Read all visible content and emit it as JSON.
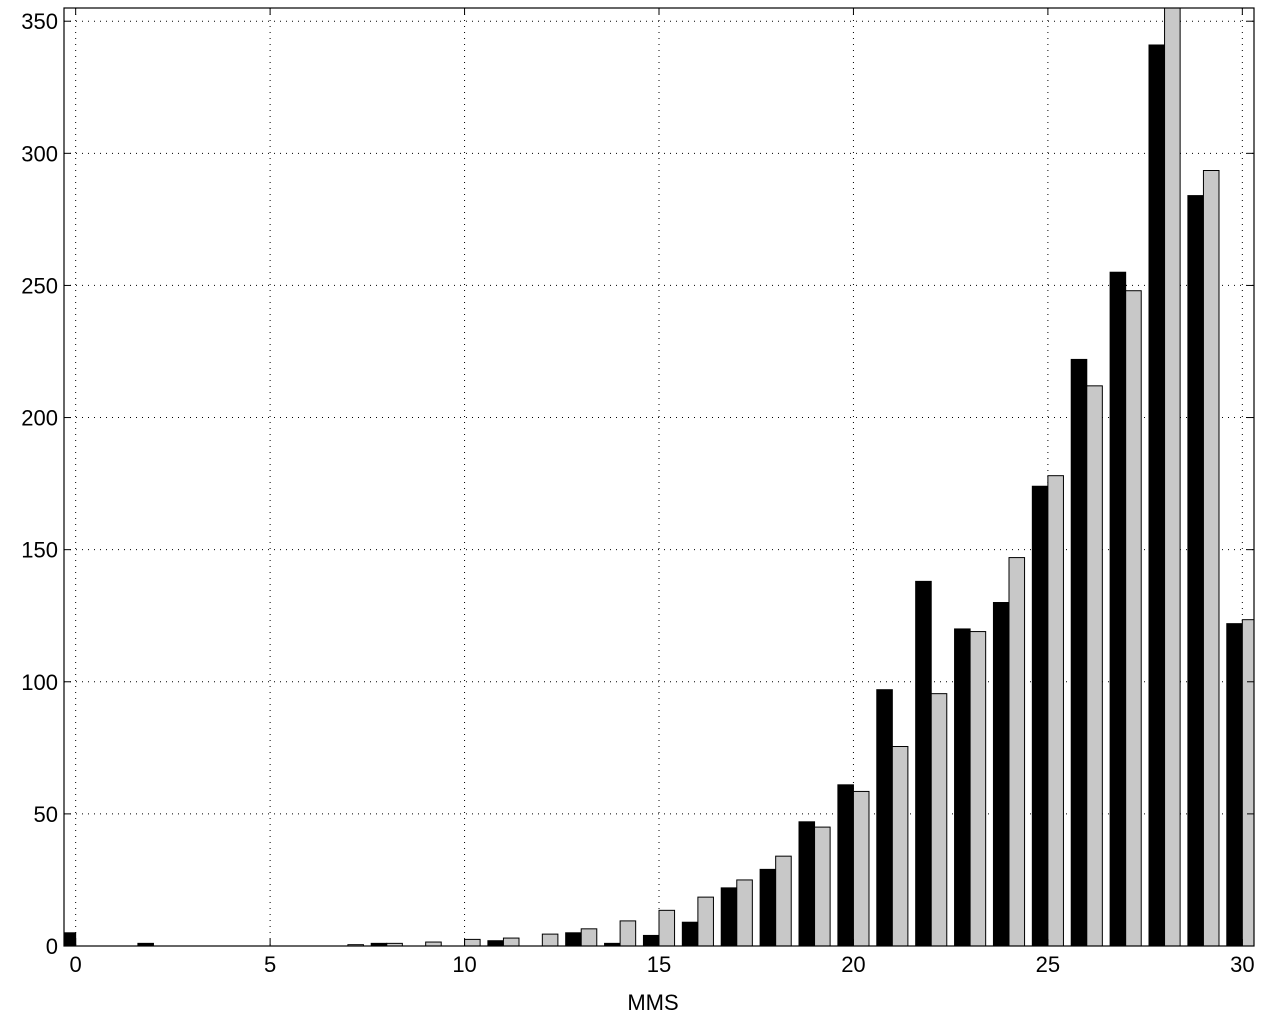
{
  "chart_data": {
    "type": "bar",
    "title": "",
    "xlabel": "MMS",
    "ylabel": "",
    "x": [
      0,
      1,
      2,
      3,
      4,
      5,
      6,
      7,
      8,
      9,
      10,
      11,
      12,
      13,
      14,
      15,
      16,
      17,
      18,
      19,
      20,
      21,
      22,
      23,
      24,
      25,
      26,
      27,
      28,
      29,
      30
    ],
    "xlim": [
      -0.3,
      30.3
    ],
    "ylim": [
      0,
      355
    ],
    "xticks": [
      0,
      5,
      10,
      15,
      20,
      25,
      30
    ],
    "yticks": [
      0,
      50,
      100,
      150,
      200,
      250,
      300,
      350
    ],
    "grid": true,
    "series": [
      {
        "color": "#000000",
        "values": [
          5,
          0,
          1,
          0,
          0,
          0,
          0,
          0,
          1,
          0,
          0,
          2,
          0,
          5,
          1,
          4,
          9,
          22,
          29,
          47,
          61,
          97,
          138,
          120,
          130,
          174,
          222,
          255,
          341,
          284,
          122
        ]
      },
      {
        "color": "#c8c8c8",
        "values": [
          0,
          0,
          0,
          0,
          0,
          0,
          0,
          0.5,
          1,
          1.5,
          2.5,
          3,
          4.5,
          6.5,
          9.5,
          13.5,
          18.5,
          25,
          34,
          45,
          58.5,
          75.5,
          95.5,
          119,
          147,
          178,
          212,
          248,
          358,
          293.5,
          123.5
        ]
      }
    ]
  }
}
